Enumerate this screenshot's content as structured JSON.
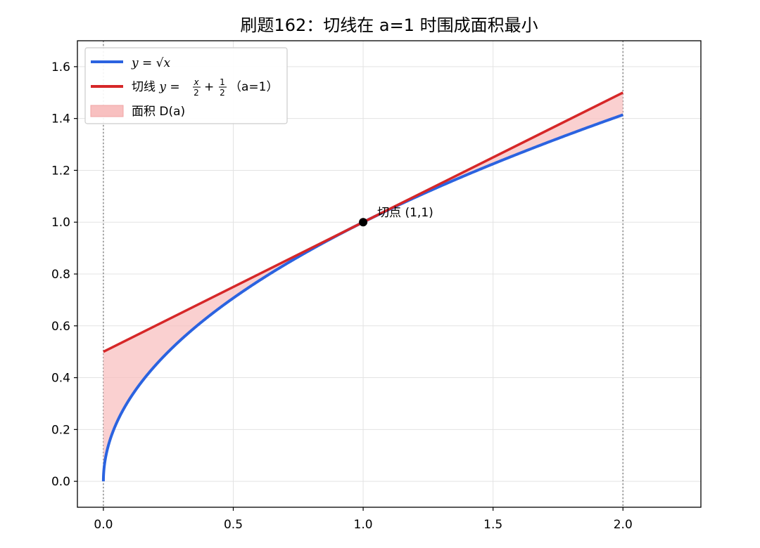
{
  "chart_data": {
    "type": "line",
    "title": "刷题162：切线在 a=1 时围成面积最小",
    "xlabel": "",
    "ylabel": "",
    "xlim": [
      -0.1,
      2.3
    ],
    "ylim": [
      -0.1,
      1.7
    ],
    "x_ticks": [
      0.0,
      0.5,
      1.0,
      1.5,
      2.0
    ],
    "x_tick_labels": [
      "0.0",
      "0.5",
      "1.0",
      "1.5",
      "2.0"
    ],
    "y_ticks": [
      0.0,
      0.2,
      0.4,
      0.6,
      0.8,
      1.0,
      1.2,
      1.4,
      1.6
    ],
    "y_tick_labels": [
      "0.0",
      "0.2",
      "0.4",
      "0.6",
      "0.8",
      "1.0",
      "1.2",
      "1.4",
      "1.6"
    ],
    "grid": true,
    "legend_position": "top-left",
    "vertical_lines": [
      0,
      2
    ],
    "series": [
      {
        "name": "y = √x",
        "kind": "curve",
        "function": "sqrt",
        "x_range": [
          0,
          2
        ],
        "color": "#2b63e0",
        "sample_points": [
          [
            0,
            0
          ],
          [
            0.25,
            0.5
          ],
          [
            0.5,
            0.707
          ],
          [
            1,
            1
          ],
          [
            1.5,
            1.225
          ],
          [
            2,
            1.414
          ]
        ]
      },
      {
        "name": "切线 y = x/2 + 1/2 （a=1）",
        "kind": "line",
        "slope": 0.5,
        "intercept": 0.5,
        "x_range": [
          0,
          2
        ],
        "color": "#d62728",
        "sample_points": [
          [
            0,
            0.5
          ],
          [
            1,
            1
          ],
          [
            2,
            1.5
          ]
        ]
      }
    ],
    "fill": {
      "name": "面积 D(a)",
      "between": [
        "切线 y = x/2 + 1/2 （a=1）",
        "y = √x"
      ],
      "x_range": [
        0,
        2
      ],
      "color": "#f8c0c0"
    },
    "point": {
      "x": 1,
      "y": 1,
      "label": "切点 (1,1)",
      "color": "#000000"
    },
    "legend": {
      "curve_prefix": "y",
      "curve_eq": " = √",
      "curve_var": "x",
      "tangent_prefix": "切线 ",
      "tangent_y": "y",
      "tangent_eq": " = ",
      "tangent_num1": "x",
      "tangent_den1": "2",
      "tangent_plus": " + ",
      "tangent_num2": "1",
      "tangent_den2": "2",
      "tangent_suffix": "（a=1）",
      "fill_label": "面积 D(a)"
    }
  }
}
